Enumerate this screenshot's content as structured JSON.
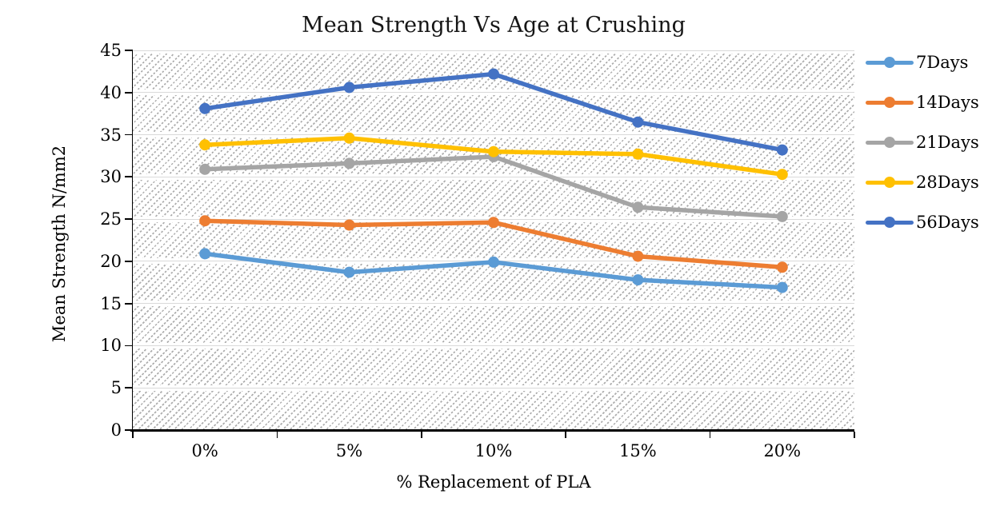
{
  "chart_data": {
    "type": "line",
    "title": "Mean Strength Vs Age at Crushing",
    "xlabel": "% Replacement of PLA",
    "ylabel": "Mean Strength N/mm2",
    "categories": [
      "0%",
      "5%",
      "10%",
      "15%",
      "20%"
    ],
    "y_ticks": [
      0,
      5,
      10,
      15,
      20,
      25,
      30,
      35,
      40,
      45
    ],
    "ylim": [
      0,
      45
    ],
    "grid": "horizontal",
    "plot_background": "diagonal-hatch",
    "legend_position": "right",
    "series": [
      {
        "name": "7Days",
        "color": "#5B9BD5",
        "values": [
          20.9,
          18.7,
          19.9,
          17.8,
          16.9
        ]
      },
      {
        "name": "14Days",
        "color": "#ED7D31",
        "values": [
          24.8,
          24.3,
          24.6,
          20.6,
          19.3
        ]
      },
      {
        "name": "21Days",
        "color": "#A5A5A5",
        "values": [
          30.9,
          31.6,
          32.4,
          26.4,
          25.3
        ]
      },
      {
        "name": "28Days",
        "color": "#FFC000",
        "values": [
          33.8,
          34.6,
          33.0,
          32.7,
          30.3
        ]
      },
      {
        "name": "56Days",
        "color": "#4472C4",
        "values": [
          38.1,
          40.6,
          42.2,
          36.5,
          33.2
        ]
      }
    ]
  }
}
